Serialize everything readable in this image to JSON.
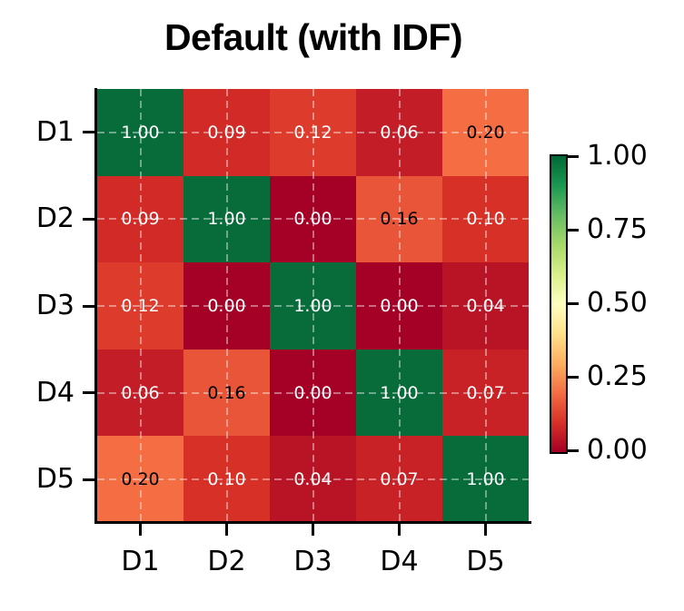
{
  "title": "Default (with IDF)",
  "chart_data": {
    "type": "heatmap",
    "title": "Default (with IDF)",
    "x_labels": [
      "D1",
      "D2",
      "D3",
      "D4",
      "D5"
    ],
    "y_labels": [
      "D1",
      "D2",
      "D3",
      "D4",
      "D5"
    ],
    "matrix": [
      [
        1.0,
        0.09,
        0.12,
        0.06,
        0.2
      ],
      [
        0.09,
        1.0,
        0.0,
        0.16,
        0.1
      ],
      [
        0.12,
        0.0,
        1.0,
        0.0,
        0.04
      ],
      [
        0.06,
        0.16,
        0.0,
        1.0,
        0.07
      ],
      [
        0.2,
        0.1,
        0.04,
        0.07,
        1.0
      ]
    ],
    "cell_labels": [
      [
        "1.00",
        "0.09",
        "0.12",
        "0.06",
        "0.20"
      ],
      [
        "0.09",
        "1.00",
        "0.00",
        "0.16",
        "0.10"
      ],
      [
        "0.12",
        "0.00",
        "1.00",
        "0.00",
        "0.04"
      ],
      [
        "0.06",
        "0.16",
        "0.00",
        "1.00",
        "0.07"
      ],
      [
        "0.20",
        "0.10",
        "0.04",
        "0.07",
        "1.00"
      ]
    ],
    "value_colors": {
      "0.00": "#a50026",
      "0.04": "#b91326",
      "0.06": "#c31d27",
      "0.07": "#c82227",
      "0.09": "#d22b27",
      "0.10": "#d73027",
      "0.12": "#dd3c2d",
      "0.16": "#e85538",
      "0.20": "#f46d43",
      "1.00": "#076b3a"
    },
    "black_text_values": [
      "0.16",
      "0.20"
    ],
    "annotation_white": "#ffffff",
    "annotation_black": "#000000",
    "colormap": "RdYlGn",
    "colormap_stops": [
      "#a50026",
      "#d73027",
      "#f46d43",
      "#fdae61",
      "#fee08b",
      "#ffffbf",
      "#d9ef8b",
      "#a6d96a",
      "#66bd63",
      "#1a9850",
      "#006837"
    ],
    "vmin": 0.0,
    "vmax": 1.0,
    "colorbar_tick_labels": [
      "1.00",
      "0.75",
      "0.50",
      "0.25",
      "0.00"
    ],
    "grid": true,
    "grid_style": "dashed",
    "axis_color": "#000000",
    "background_color": "#ffffff"
  }
}
